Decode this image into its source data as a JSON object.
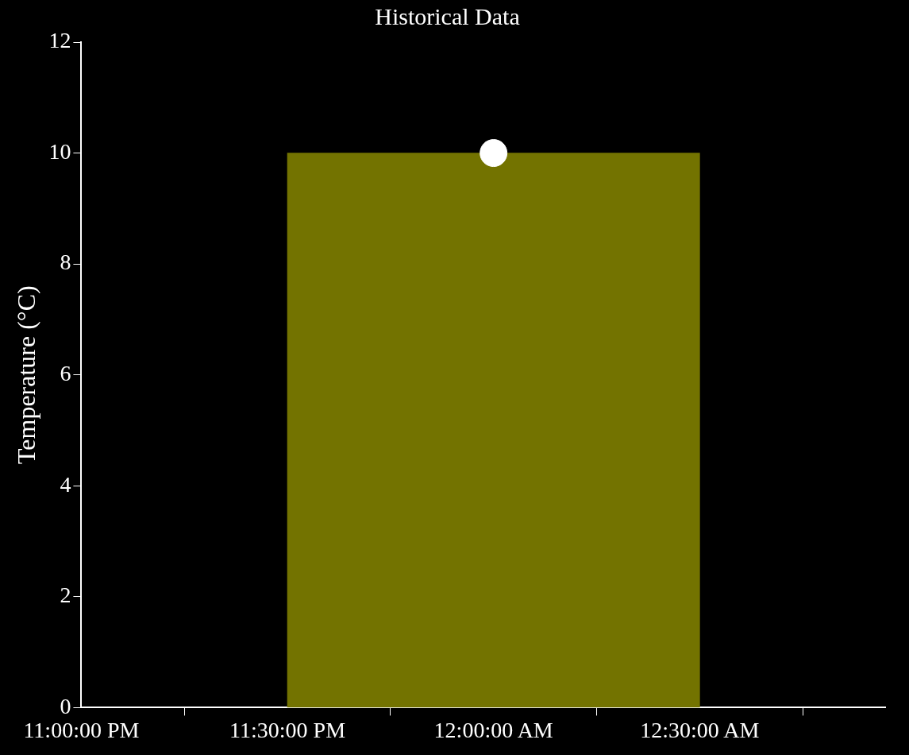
{
  "chart_data": {
    "type": "histogram",
    "title": "Historical Data",
    "ylabel": "Temperature (°C)",
    "series": [
      {
        "bins": [
          "2000-01-01T23:30",
          "2000-01-02T00:30"
        ],
        "values": [
          10
        ],
        "color": "#737300"
      },
      {
        "type": "scatter",
        "x": [
          "2000-01-02T00:00"
        ],
        "values": [
          10
        ],
        "color": "#ffffff"
      }
    ],
    "xlim": [
      "2000-01-01T23:00",
      "2000-01-02T00:57"
    ],
    "xticks": [
      {
        "value": "2000-01-01T23:00",
        "label": "11:00:00 PM"
      },
      {
        "value": "2000-01-01T23:30",
        "label": "11:30:00 PM"
      },
      {
        "value": "2000-01-02T00:00",
        "label": "12:00:00 AM"
      },
      {
        "value": "2000-01-02T00:30",
        "label": "12:30:00 AM"
      }
    ],
    "ylim": [
      0,
      12
    ],
    "yticks": [
      0,
      2,
      4,
      6,
      8,
      10,
      12
    ],
    "grid": false,
    "legend": false,
    "marker": "circle"
  }
}
